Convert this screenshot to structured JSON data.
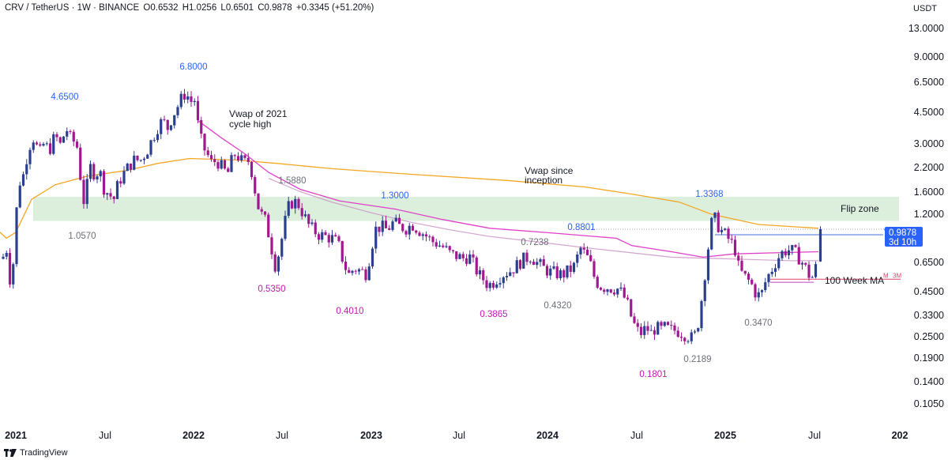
{
  "header": {
    "symbol": "CRV / TetherUS · 1W · BINANCE",
    "open": "O0.6532",
    "high": "H1.0256",
    "low": "L0.6501",
    "close": "C0.9878",
    "change": "+0.3345 (+51.20%)"
  },
  "currency": "USDT",
  "footer": {
    "brand": "TradingView"
  },
  "price_badge": {
    "price": "0.9878",
    "countdown": "3d 10h"
  },
  "chart_data": {
    "type": "candlestick",
    "scale": "log",
    "ylim": [
      0.105,
      13.0
    ],
    "y_ticks": [
      "13.0000",
      "9.0000",
      "6.5000",
      "4.5000",
      "3.0000",
      "2.2000",
      "1.6000",
      "1.2000",
      "0.6500",
      "0.4500",
      "0.3300",
      "0.2500",
      "0.1900",
      "0.1400",
      "0.1050"
    ],
    "x_ticks": [
      "2021",
      "Jul",
      "2022",
      "Jul",
      "2023",
      "Jul",
      "2024",
      "Jul",
      "2025",
      "Jul",
      "202"
    ],
    "colors": {
      "up": "#2a3f8f",
      "down": "#a0188f",
      "vwap_inception": "#f5a623",
      "vwap_2021": "#e040c8",
      "ma100": "#c78cc0",
      "flip_zone": "#c8e6c9"
    },
    "flip_zone": {
      "low": 1.1,
      "high": 1.5,
      "label": "Flip zone"
    },
    "annotations": [
      {
        "text": "Vwap of 2021",
        "text2": "cycle high"
      },
      {
        "text": "Vwap since",
        "text2": "inception"
      },
      {
        "text": "100 Week MA"
      }
    ],
    "level_lines": [
      {
        "label": "Y",
        "price": 0.92,
        "color": "#4a6ee0"
      },
      {
        "label": "M",
        "price": 0.52,
        "color": "#e0406a"
      },
      {
        "label": "3M",
        "price": 0.52,
        "color": "#e0406a"
      }
    ],
    "price_labels": [
      {
        "text": "4.6500",
        "kind": "high"
      },
      {
        "text": "6.8000",
        "kind": "high"
      },
      {
        "text": "1.0570",
        "kind": "neutral"
      },
      {
        "text": "1.5880",
        "kind": "neutral"
      },
      {
        "text": "1.3000",
        "kind": "high"
      },
      {
        "text": "0.5350",
        "kind": "low"
      },
      {
        "text": "0.4010",
        "kind": "low"
      },
      {
        "text": "0.7238",
        "kind": "neutral"
      },
      {
        "text": "0.8801",
        "kind": "high"
      },
      {
        "text": "0.3865",
        "kind": "low"
      },
      {
        "text": "0.4320",
        "kind": "neutral"
      },
      {
        "text": "1.3368",
        "kind": "high"
      },
      {
        "text": "0.1801",
        "kind": "low"
      },
      {
        "text": "0.2189",
        "kind": "neutral"
      },
      {
        "text": "0.3470",
        "kind": "neutral"
      }
    ],
    "waypoints": [
      [
        0,
        0.62
      ],
      [
        8,
        0.78
      ],
      [
        14,
        0.46
      ],
      [
        20,
        0.95
      ],
      [
        22,
        1.7
      ],
      [
        30,
        2.0
      ],
      [
        36,
        2.8
      ],
      [
        42,
        3.2
      ],
      [
        50,
        2.6
      ],
      [
        56,
        3.0
      ],
      [
        62,
        2.7
      ],
      [
        70,
        3.3
      ],
      [
        76,
        2.9
      ],
      [
        84,
        3.6
      ],
      [
        90,
        3.1
      ],
      [
        96,
        3.0
      ],
      [
        100,
        2.6
      ],
      [
        104,
        1.35
      ],
      [
        108,
        1.5
      ],
      [
        114,
        2.2
      ],
      [
        120,
        2.0
      ],
      [
        126,
        2.1
      ],
      [
        132,
        1.65
      ],
      [
        138,
        1.55
      ],
      [
        144,
        1.45
      ],
      [
        150,
        1.8
      ],
      [
        156,
        2.0
      ],
      [
        164,
        2.25
      ],
      [
        170,
        2.4
      ],
      [
        178,
        2.4
      ],
      [
        186,
        2.7
      ],
      [
        192,
        3.1
      ],
      [
        200,
        3.7
      ],
      [
        206,
        4.0
      ],
      [
        212,
        3.6
      ],
      [
        218,
        4.2
      ],
      [
        224,
        4.7
      ],
      [
        230,
        5.3
      ],
      [
        236,
        5.8
      ],
      [
        240,
        5.0
      ],
      [
        246,
        5.3
      ],
      [
        250,
        3.9
      ],
      [
        256,
        2.9
      ],
      [
        262,
        2.6
      ],
      [
        268,
        2.3
      ],
      [
        274,
        2.4
      ],
      [
        280,
        2.2
      ],
      [
        288,
        2.0
      ],
      [
        296,
        2.6
      ],
      [
        302,
        2.5
      ],
      [
        308,
        2.3
      ],
      [
        316,
        2.4
      ],
      [
        322,
        1.7
      ],
      [
        328,
        1.25
      ],
      [
        336,
        1.1
      ],
      [
        342,
        0.85
      ],
      [
        348,
        0.62
      ],
      [
        354,
        0.75
      ],
      [
        360,
        1.05
      ],
      [
        366,
        1.35
      ],
      [
        372,
        1.42
      ],
      [
        378,
        1.35
      ],
      [
        384,
        1.2
      ],
      [
        390,
        1.05
      ],
      [
        396,
        0.98
      ],
      [
        404,
        0.92
      ],
      [
        412,
        0.9
      ],
      [
        420,
        0.88
      ],
      [
        428,
        0.82
      ],
      [
        436,
        0.62
      ],
      [
        442,
        0.55
      ],
      [
        448,
        0.6
      ],
      [
        456,
        0.58
      ],
      [
        464,
        0.56
      ],
      [
        470,
        0.78
      ],
      [
        476,
        1.0
      ],
      [
        482,
        1.02
      ],
      [
        490,
        0.98
      ],
      [
        498,
        1.08
      ],
      [
        506,
        1.02
      ],
      [
        514,
        1.0
      ],
      [
        522,
        1.05
      ],
      [
        530,
        0.98
      ],
      [
        538,
        0.92
      ],
      [
        546,
        0.85
      ],
      [
        554,
        0.82
      ],
      [
        562,
        0.78
      ],
      [
        570,
        0.72
      ],
      [
        578,
        0.7
      ],
      [
        586,
        0.68
      ],
      [
        594,
        0.7
      ],
      [
        600,
        0.62
      ],
      [
        606,
        0.55
      ],
      [
        612,
        0.52
      ],
      [
        618,
        0.48
      ],
      [
        624,
        0.5
      ],
      [
        630,
        0.53
      ],
      [
        638,
        0.56
      ],
      [
        646,
        0.58
      ],
      [
        654,
        0.62
      ],
      [
        660,
        0.66
      ],
      [
        666,
        0.68
      ],
      [
        672,
        0.7
      ],
      [
        680,
        0.64
      ],
      [
        688,
        0.6
      ],
      [
        696,
        0.57
      ],
      [
        704,
        0.56
      ],
      [
        712,
        0.55
      ],
      [
        720,
        0.58
      ],
      [
        728,
        0.62
      ],
      [
        734,
        0.78
      ],
      [
        740,
        0.72
      ],
      [
        746,
        0.66
      ],
      [
        752,
        0.54
      ],
      [
        758,
        0.48
      ],
      [
        764,
        0.47
      ],
      [
        770,
        0.47
      ],
      [
        776,
        0.46
      ],
      [
        782,
        0.46
      ],
      [
        788,
        0.43
      ],
      [
        794,
        0.38
      ],
      [
        800,
        0.31
      ],
      [
        806,
        0.27
      ],
      [
        812,
        0.26
      ],
      [
        818,
        0.28
      ],
      [
        824,
        0.26
      ],
      [
        830,
        0.28
      ],
      [
        836,
        0.27
      ],
      [
        842,
        0.28
      ],
      [
        848,
        0.27
      ],
      [
        856,
        0.27
      ],
      [
        864,
        0.26
      ],
      [
        872,
        0.25
      ],
      [
        878,
        0.24
      ],
      [
        884,
        0.3
      ],
      [
        888,
        0.4
      ],
      [
        892,
        0.55
      ],
      [
        896,
        0.75
      ],
      [
        900,
        1.05
      ],
      [
        904,
        1.15
      ],
      [
        908,
        1.05
      ],
      [
        912,
        0.98
      ],
      [
        918,
        0.92
      ],
      [
        924,
        0.85
      ],
      [
        930,
        0.78
      ],
      [
        934,
        0.62
      ],
      [
        940,
        0.55
      ],
      [
        946,
        0.52
      ],
      [
        952,
        0.48
      ],
      [
        958,
        0.42
      ],
      [
        964,
        0.43
      ],
      [
        970,
        0.52
      ],
      [
        976,
        0.58
      ],
      [
        982,
        0.65
      ],
      [
        988,
        0.72
      ],
      [
        994,
        0.75
      ],
      [
        1000,
        0.76
      ],
      [
        1006,
        0.73
      ],
      [
        1012,
        0.68
      ],
      [
        1018,
        0.62
      ],
      [
        1024,
        0.55
      ],
      [
        1030,
        0.53
      ],
      [
        1034,
        0.65
      ],
      [
        1038,
        0.9
      ]
    ]
  }
}
